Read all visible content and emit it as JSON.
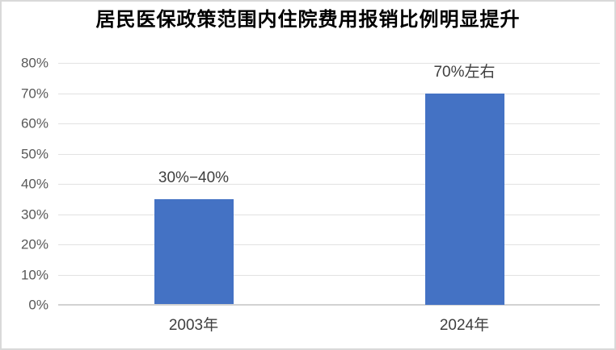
{
  "title": "居民医保政策范围内住院费用报销比例明显提升",
  "colors": {
    "bar": "#4472c4",
    "gridline": "#e2e2e2",
    "baseline": "#d2d2d2",
    "tick_label": "#595959",
    "data_label": "#3f3f3f",
    "category_label": "#3f3f3f",
    "frame_border": "#d9d9d9",
    "title_color": "#000000",
    "background": "#ffffff"
  },
  "chart_data": {
    "type": "bar",
    "title": "居民医保政策范围内住院费用报销比例明显提升",
    "categories": [
      "2003年",
      "2024年"
    ],
    "values": [
      35,
      70
    ],
    "data_labels": [
      "30%−40%",
      "70%左右"
    ],
    "ylim": [
      0,
      80
    ],
    "ytick_step": 10,
    "ytick_labels": [
      "0%",
      "10%",
      "20%",
      "30%",
      "40%",
      "50%",
      "60%",
      "70%",
      "80%"
    ],
    "xlabel": "",
    "ylabel": "",
    "grid": true,
    "legend": "none"
  }
}
